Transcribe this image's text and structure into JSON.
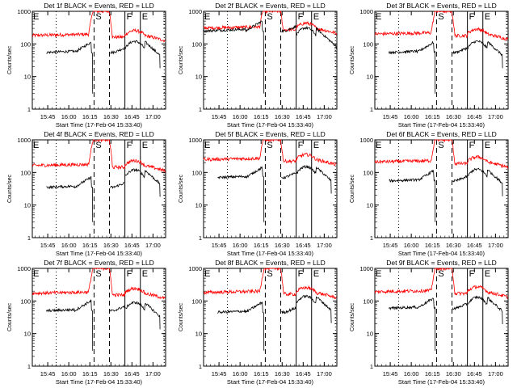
{
  "figure": {
    "panels": [
      {
        "id": "det1f",
        "title": "Det 1f BLACK = Events, RED = LLD"
      },
      {
        "id": "det2f",
        "title": "Det 2f BLACK = Events, RED = LLD"
      },
      {
        "id": "det3f",
        "title": "Det 3f BLACK = Events, RED = LLD"
      },
      {
        "id": "det4f",
        "title": "Det 4f BLACK = Events, RED = LLD"
      },
      {
        "id": "det5f",
        "title": "Det 5f BLACK = Events, RED = LLD"
      },
      {
        "id": "det6f",
        "title": "Det 6f BLACK = Events, RED = LLD"
      },
      {
        "id": "det7f",
        "title": "Det 7f BLACK = Events, RED = LLD"
      },
      {
        "id": "det8f",
        "title": "Det 8f BLACK = Events, RED = LLD"
      },
      {
        "id": "det9f",
        "title": "Det 9f BLACK = Events, RED = LLD"
      }
    ]
  },
  "chart_data": {
    "type": "line",
    "layout": "3x3 grid",
    "xlabel": "Start Time (17-Feb-04 15:33:40)",
    "ylabel": "Counts/sec",
    "yscale": "log",
    "ylim": [
      1,
      1000
    ],
    "y_ticks": [
      {
        "value": 1,
        "label": "1"
      },
      {
        "value": 10,
        "label": "10"
      },
      {
        "value": 100,
        "label": "100"
      },
      {
        "value": 1000,
        "label": "1000"
      }
    ],
    "x_ticks": [
      {
        "minutes": 11,
        "label": "15:45"
      },
      {
        "minutes": 26,
        "label": "16:00"
      },
      {
        "minutes": 41,
        "label": "16:15"
      },
      {
        "minutes": 56,
        "label": "16:30"
      },
      {
        "minutes": 71,
        "label": "16:45"
      },
      {
        "minutes": 86,
        "label": "17:00"
      }
    ],
    "xlim_minutes": [
      0,
      95
    ],
    "series": [
      {
        "name": "Events",
        "color": "#000000"
      },
      {
        "name": "LLD",
        "color": "#ff0000"
      }
    ],
    "markers": [
      {
        "label": "E",
        "minutes": 0,
        "line": "none"
      },
      {
        "label": "",
        "minutes": 17,
        "line": "dotted"
      },
      {
        "label": "S",
        "minutes": 44,
        "line": "dashed"
      },
      {
        "label": "",
        "minutes": 55,
        "line": "dashed"
      },
      {
        "label": "F",
        "minutes": 66,
        "line": "solid"
      },
      {
        "label": "E",
        "minutes": 77,
        "line": "solid"
      },
      {
        "label": "",
        "minutes": 94,
        "line": "dotted"
      }
    ],
    "profiles": [
      {
        "lld_base": 190,
        "ev_start": 55,
        "ev_end": 120,
        "ev_data_start": 10,
        "ev_data_end": 91
      },
      {
        "lld_base": 320,
        "ev_start": 250,
        "ev_end": 310,
        "ev_data_start": 0,
        "ev_data_end": 95
      },
      {
        "lld_base": 210,
        "ev_start": 55,
        "ev_end": 120,
        "ev_data_start": 10,
        "ev_data_end": 91
      },
      {
        "lld_base": 170,
        "ev_start": 35,
        "ev_end": 120,
        "ev_data_start": 10,
        "ev_data_end": 91
      },
      {
        "lld_base": 260,
        "ev_start": 70,
        "ev_end": 150,
        "ev_data_start": 10,
        "ev_data_end": 91
      },
      {
        "lld_base": 220,
        "ev_start": 55,
        "ev_end": 125,
        "ev_data_start": 10,
        "ev_data_end": 91
      },
      {
        "lld_base": 180,
        "ev_start": 50,
        "ev_end": 90,
        "ev_data_start": 10,
        "ev_data_end": 91
      },
      {
        "lld_base": 190,
        "ev_start": 45,
        "ev_end": 140,
        "ev_data_start": 10,
        "ev_data_end": 91
      },
      {
        "lld_base": 200,
        "ev_start": 60,
        "ev_end": 130,
        "ev_data_start": 10,
        "ev_data_end": 91
      }
    ]
  }
}
